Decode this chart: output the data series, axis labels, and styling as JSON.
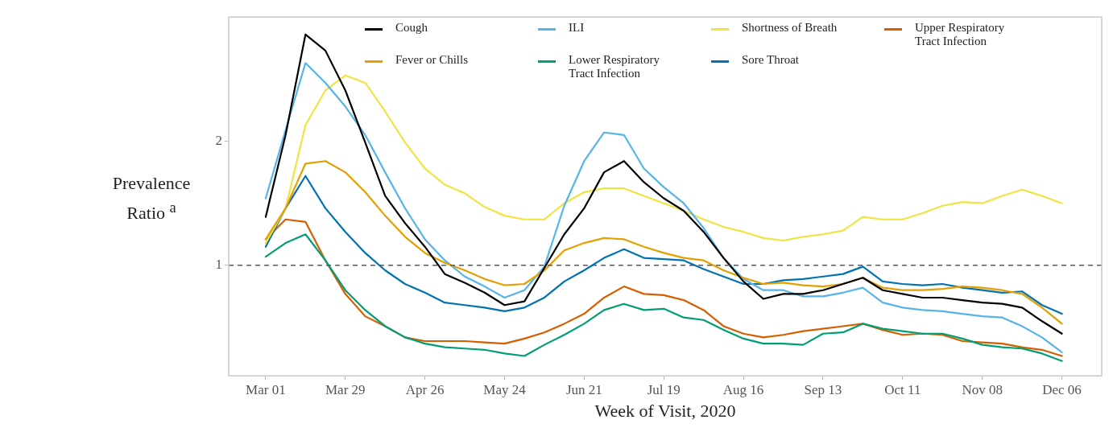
{
  "chart_data": {
    "type": "line",
    "xlabel": "Week of Visit, 2020",
    "ylabel": "Prevalence Ratio $^{a}$",
    "x": [
      "2020-03-01",
      "2020-03-08",
      "2020-03-15",
      "2020-03-22",
      "2020-03-29",
      "2020-04-05",
      "2020-04-12",
      "2020-04-19",
      "2020-04-26",
      "2020-05-03",
      "2020-05-10",
      "2020-05-17",
      "2020-05-24",
      "2020-05-31",
      "2020-06-07",
      "2020-06-14",
      "2020-06-21",
      "2020-06-28",
      "2020-07-05",
      "2020-07-12",
      "2020-07-19",
      "2020-07-26",
      "2020-08-02",
      "2020-08-09",
      "2020-08-16",
      "2020-08-23",
      "2020-08-30",
      "2020-09-06",
      "2020-09-13",
      "2020-09-20",
      "2020-09-27",
      "2020-10-04",
      "2020-10-11",
      "2020-10-18",
      "2020-10-25",
      "2020-11-01",
      "2020-11-08",
      "2020-11-15",
      "2020-11-22",
      "2020-11-29",
      "2020-12-06"
    ],
    "series": [
      {
        "name": "Cough",
        "color": "#000000",
        "values": [
          1.39,
          2.05,
          2.86,
          2.73,
          2.41,
          1.99,
          1.56,
          1.34,
          1.15,
          0.93,
          0.86,
          0.78,
          0.68,
          0.71,
          0.98,
          1.25,
          1.46,
          1.75,
          1.84,
          1.67,
          1.54,
          1.44,
          1.27,
          1.06,
          0.87,
          0.73,
          0.77,
          0.77,
          0.8,
          0.85,
          0.9,
          0.8,
          0.77,
          0.74,
          0.74,
          0.72,
          0.7,
          0.69,
          0.66,
          0.55,
          0.45
        ]
      },
      {
        "name": "Fever or Chills",
        "color": "#e69f00",
        "values": [
          1.21,
          1.46,
          1.82,
          1.84,
          1.75,
          1.59,
          1.4,
          1.23,
          1.1,
          1.02,
          0.96,
          0.89,
          0.84,
          0.85,
          0.96,
          1.12,
          1.18,
          1.22,
          1.21,
          1.15,
          1.1,
          1.06,
          1.04,
          0.96,
          0.9,
          0.85,
          0.86,
          0.84,
          0.83,
          0.85,
          0.9,
          0.82,
          0.8,
          0.8,
          0.81,
          0.83,
          0.82,
          0.8,
          0.77,
          0.66,
          0.53
        ]
      },
      {
        "name": "ILI",
        "color": "#56b4e9",
        "values": [
          1.54,
          2.09,
          2.63,
          2.47,
          2.28,
          2.05,
          1.75,
          1.46,
          1.21,
          1.04,
          0.91,
          0.83,
          0.74,
          0.8,
          0.99,
          1.48,
          1.84,
          2.07,
          2.05,
          1.78,
          1.63,
          1.5,
          1.3,
          1.06,
          0.89,
          0.8,
          0.8,
          0.75,
          0.75,
          0.78,
          0.82,
          0.7,
          0.66,
          0.64,
          0.63,
          0.61,
          0.59,
          0.58,
          0.51,
          0.42,
          0.3
        ]
      },
      {
        "name": "Lower Respiratory Tract Infection",
        "color": "#009e73",
        "values": [
          1.07,
          1.18,
          1.25,
          1.04,
          0.8,
          0.64,
          0.51,
          0.42,
          0.37,
          0.34,
          0.33,
          0.32,
          0.29,
          0.27,
          0.36,
          0.44,
          0.53,
          0.64,
          0.69,
          0.64,
          0.65,
          0.58,
          0.56,
          0.48,
          0.41,
          0.37,
          0.37,
          0.36,
          0.45,
          0.46,
          0.53,
          0.49,
          0.47,
          0.45,
          0.45,
          0.41,
          0.36,
          0.34,
          0.33,
          0.29,
          0.23
        ]
      },
      {
        "name": "Shortness of Breath",
        "color": "#f0e442",
        "values": [
          1.18,
          1.46,
          2.13,
          2.41,
          2.53,
          2.47,
          2.24,
          1.99,
          1.78,
          1.65,
          1.58,
          1.47,
          1.4,
          1.37,
          1.37,
          1.5,
          1.59,
          1.62,
          1.62,
          1.56,
          1.5,
          1.44,
          1.37,
          1.31,
          1.27,
          1.22,
          1.2,
          1.23,
          1.25,
          1.28,
          1.39,
          1.37,
          1.37,
          1.42,
          1.48,
          1.51,
          1.5,
          1.56,
          1.61,
          1.56,
          1.5
        ]
      },
      {
        "name": "Sore Throat",
        "color": "#0072b2",
        "values": [
          1.15,
          1.46,
          1.72,
          1.46,
          1.27,
          1.1,
          0.96,
          0.85,
          0.78,
          0.7,
          0.68,
          0.66,
          0.63,
          0.66,
          0.74,
          0.87,
          0.96,
          1.06,
          1.13,
          1.06,
          1.05,
          1.04,
          0.97,
          0.91,
          0.85,
          0.85,
          0.88,
          0.89,
          0.91,
          0.93,
          0.99,
          0.87,
          0.85,
          0.84,
          0.85,
          0.82,
          0.8,
          0.78,
          0.79,
          0.68,
          0.61
        ]
      },
      {
        "name": "Upper Respiratory Tract Infection",
        "color": "#d55e00",
        "values": [
          1.21,
          1.37,
          1.35,
          1.04,
          0.77,
          0.59,
          0.51,
          0.42,
          0.39,
          0.39,
          0.39,
          0.38,
          0.37,
          0.41,
          0.46,
          0.53,
          0.61,
          0.74,
          0.83,
          0.77,
          0.76,
          0.72,
          0.64,
          0.51,
          0.45,
          0.42,
          0.44,
          0.47,
          0.49,
          0.51,
          0.53,
          0.48,
          0.44,
          0.45,
          0.44,
          0.39,
          0.38,
          0.37,
          0.34,
          0.32,
          0.27
        ]
      }
    ],
    "xlim": [
      "2020-02-17",
      "2020-12-20"
    ],
    "xticks": [
      {
        "value": "2020-03-01",
        "label": "Mar 01"
      },
      {
        "value": "2020-03-29",
        "label": "Mar 29"
      },
      {
        "value": "2020-04-26",
        "label": "Apr 26"
      },
      {
        "value": "2020-05-24",
        "label": "May 24"
      },
      {
        "value": "2020-06-21",
        "label": "Jun 21"
      },
      {
        "value": "2020-07-19",
        "label": "Jul 19"
      },
      {
        "value": "2020-08-16",
        "label": "Aug 16"
      },
      {
        "value": "2020-09-13",
        "label": "Sep 13"
      },
      {
        "value": "2020-10-11",
        "label": "Oct 11"
      },
      {
        "value": "2020-11-08",
        "label": "Nov 08"
      },
      {
        "value": "2020-12-06",
        "label": "Dec 06"
      }
    ],
    "ylim": [
      0.11,
      3.0
    ],
    "yticks": [
      1,
      2
    ],
    "ref_lines": [
      {
        "axis": "y",
        "value": 1,
        "color": "#555577",
        "line_style": "dashed"
      }
    ],
    "grid": false,
    "legend": "top",
    "marker": "none",
    "line_style": "solid"
  }
}
